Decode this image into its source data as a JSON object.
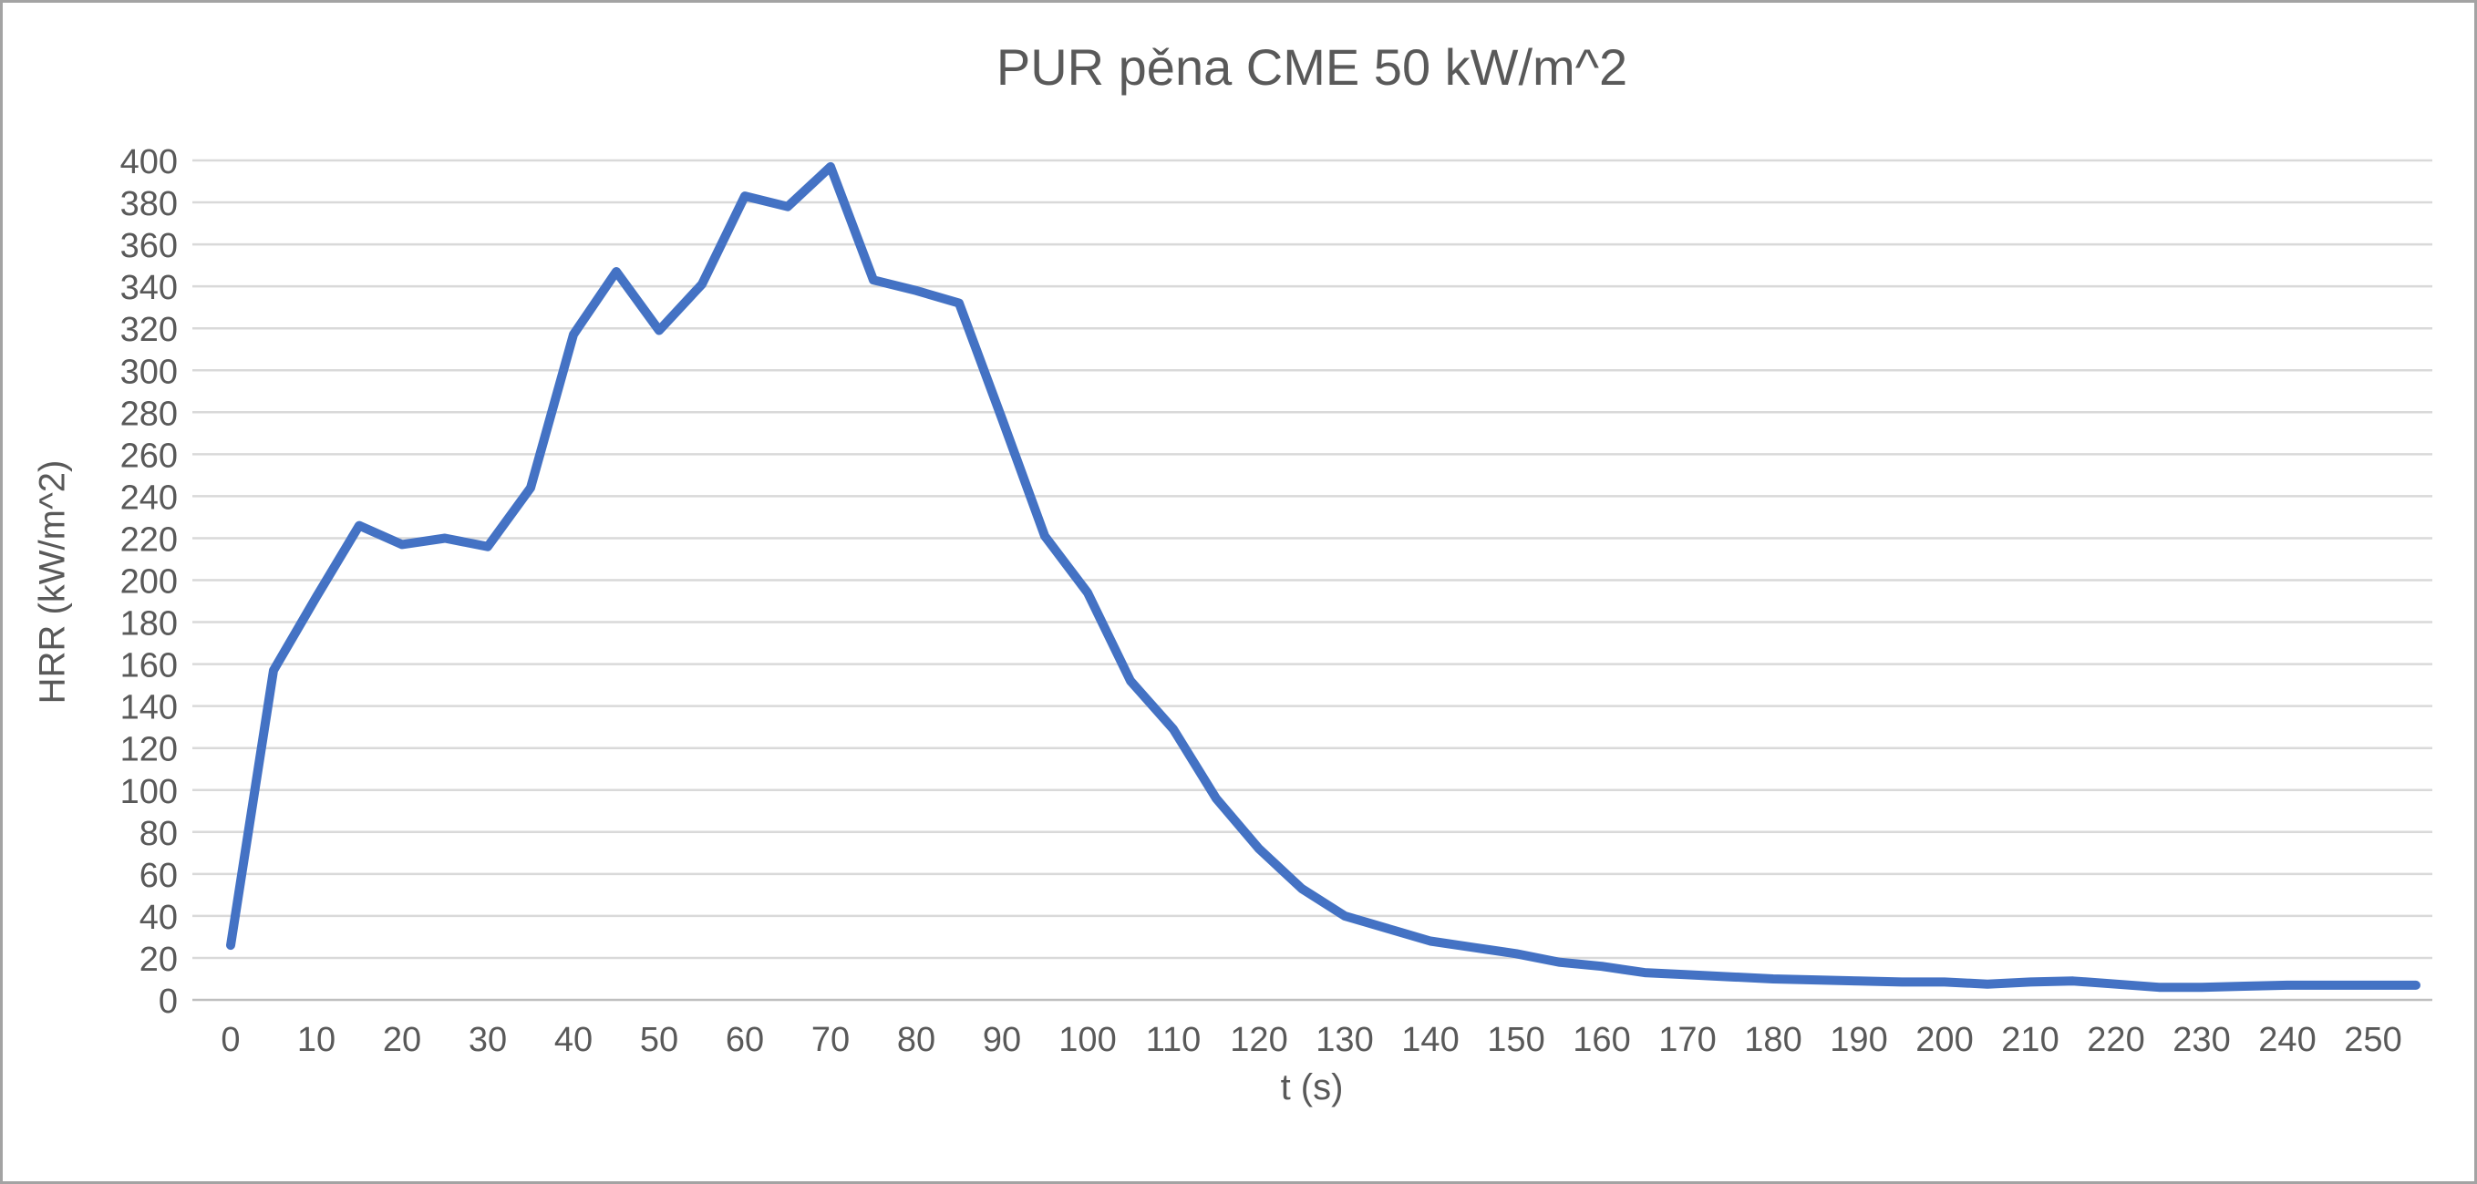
{
  "chart_title": "PUR pěna CME 50 kW/m^2",
  "chart_data": {
    "type": "line",
    "title": "PUR pěna CME 50 kW/m^2",
    "xlabel": "t (s)",
    "ylabel": "HRR (kW/m^2)",
    "xlim": [
      0,
      255
    ],
    "ylim": [
      0,
      400
    ],
    "x_ticks": [
      0,
      10,
      20,
      30,
      40,
      50,
      60,
      70,
      80,
      90,
      100,
      110,
      120,
      130,
      140,
      150,
      160,
      170,
      180,
      190,
      200,
      210,
      220,
      230,
      240,
      250
    ],
    "y_ticks": [
      0,
      20,
      40,
      60,
      80,
      100,
      120,
      140,
      160,
      180,
      200,
      220,
      240,
      260,
      280,
      300,
      320,
      340,
      360,
      380,
      400
    ],
    "grid": "horizontal",
    "legend": "none",
    "series_name": "HRR",
    "line_color": "#4472C4",
    "grid_color": "#D9D9D9",
    "axis_line_color": "#BFBFBF",
    "text_color": "#595959",
    "line_width": 10,
    "x": [
      0,
      5,
      10,
      15,
      20,
      25,
      30,
      35,
      40,
      45,
      50,
      55,
      60,
      65,
      70,
      75,
      80,
      85,
      90,
      95,
      100,
      105,
      110,
      115,
      120,
      125,
      130,
      135,
      140,
      145,
      150,
      155,
      160,
      165,
      170,
      175,
      180,
      185,
      190,
      195,
      200,
      205,
      210,
      215,
      220,
      225,
      230,
      235,
      240,
      245,
      250,
      255
    ],
    "y": [
      26,
      157,
      192,
      226,
      217,
      220,
      216,
      244,
      317,
      347,
      319,
      341,
      383,
      378,
      397,
      343,
      338,
      332,
      277,
      221,
      194,
      152,
      129,
      96,
      72,
      53,
      40,
      34,
      28,
      25,
      22,
      18,
      16,
      13,
      12,
      11,
      10,
      9.5,
      9,
      8.5,
      8.5,
      7.5,
      8.5,
      9,
      7.5,
      6,
      6,
      6.5,
      7,
      7,
      7,
      7
    ]
  }
}
